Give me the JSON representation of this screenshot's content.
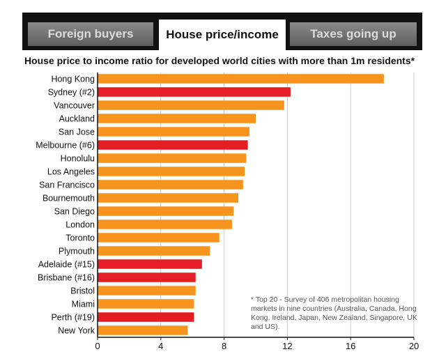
{
  "tabs": [
    {
      "label": "Foreign buyers",
      "active": false
    },
    {
      "label": "House price/income",
      "active": true
    },
    {
      "label": "Taxes going up",
      "active": false
    }
  ],
  "chart_data": {
    "type": "bar",
    "orientation": "horizontal",
    "title": "House price to income ratio for developed world cities with more than 1m residents*",
    "xlabel": "",
    "ylabel": "",
    "xlim": [
      0,
      20
    ],
    "xticks": [
      0,
      4,
      8,
      12,
      16,
      20
    ],
    "grid": true,
    "categories": [
      "Hong Kong",
      "Sydney (#2)",
      "Vancouver",
      "Auckland",
      "San Jose",
      "Melbourne (#6)",
      "Honolulu",
      "Los Angeles",
      "San Francisco",
      "Bournemouth",
      "San Diego",
      "London",
      "Toronto",
      "Plymouth",
      "Adelaide (#15)",
      "Brisbane (#16)",
      "Bristol",
      "Miami",
      "Perth (#19)",
      "New York"
    ],
    "values": [
      18.1,
      12.2,
      11.8,
      10.0,
      9.6,
      9.5,
      9.4,
      9.3,
      9.2,
      8.9,
      8.6,
      8.5,
      7.7,
      7.1,
      6.6,
      6.2,
      6.2,
      6.1,
      6.1,
      5.7
    ],
    "highlight": [
      false,
      true,
      false,
      false,
      false,
      true,
      false,
      false,
      false,
      false,
      false,
      false,
      false,
      false,
      true,
      true,
      false,
      false,
      true,
      false
    ],
    "colors": {
      "default": "#F7941D",
      "highlight": "#E31E24",
      "grid": "#cccccc"
    },
    "note": "* Top 20 - Survey of 406 metropolitan housing markets in nine countries (Australia, Canada, Hong Kong, Ireland, Japan, New Zealand, Singapore, UK and US)."
  }
}
